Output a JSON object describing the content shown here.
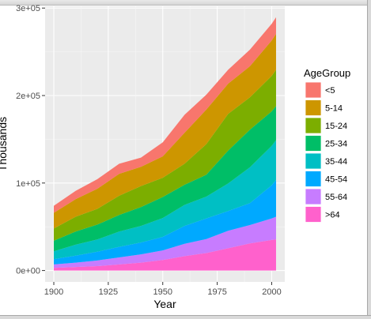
{
  "window": {
    "frame_color": "#d9d9d9"
  },
  "chart_data": {
    "type": "area",
    "stacked": true,
    "title": "",
    "xlabel": "Year",
    "ylabel": "Thousands",
    "x": [
      1900,
      1910,
      1920,
      1930,
      1940,
      1950,
      1960,
      1970,
      1980,
      1990,
      2000,
      2002
    ],
    "xlim": [
      1896,
      2006
    ],
    "ylim": [
      -13000,
      302000
    ],
    "x_ticks": [
      1900,
      1925,
      1950,
      1975,
      2000
    ],
    "x_tick_labels": [
      "1900",
      "1925",
      "1950",
      "1975",
      "2000"
    ],
    "y_ticks": [
      0,
      100000,
      200000,
      300000
    ],
    "y_tick_labels": [
      "0e+00",
      "1e+05",
      "2e+05",
      "3e+05"
    ],
    "grid": true,
    "panel_background": "#ebebeb",
    "legend": {
      "title": "AgeGroup",
      "position": "right"
    },
    "series": [
      {
        "name": ">64",
        "color": "#ff61cc",
        "values": [
          3000,
          4000,
          5000,
          7000,
          9000,
          12000,
          16500,
          20000,
          25500,
          31000,
          35000,
          35500
        ]
      },
      {
        "name": "55-64",
        "color": "#c77cff",
        "values": [
          4000,
          5000,
          6500,
          8000,
          9500,
          11000,
          14000,
          16000,
          20000,
          21000,
          24500,
          26000
        ]
      },
      {
        "name": "45-54",
        "color": "#00a9ff",
        "values": [
          6000,
          8000,
          10000,
          12000,
          13500,
          15500,
          20500,
          23500,
          22500,
          25000,
          38000,
          42000
        ]
      },
      {
        "name": "35-44",
        "color": "#00bfc4",
        "values": [
          9000,
          12500,
          14000,
          17500,
          19000,
          21500,
          24000,
          25000,
          31500,
          41000,
          45000,
          45500
        ]
      },
      {
        "name": "25-34",
        "color": "#00be67",
        "values": [
          12000,
          15000,
          17000,
          19000,
          21500,
          24000,
          23000,
          25000,
          37500,
          43000,
          39500,
          39000
        ]
      },
      {
        "name": "15-24",
        "color": "#7cae00",
        "values": [
          14000,
          17000,
          18000,
          22000,
          24000,
          22000,
          24000,
          35000,
          42000,
          37000,
          40500,
          41500
        ]
      },
      {
        "name": "5-14",
        "color": "#cd9600",
        "values": [
          18000,
          20000,
          23000,
          25000,
          22000,
          24500,
          35500,
          39500,
          34500,
          35500,
          40500,
          41000
        ]
      },
      {
        "name": "<5",
        "color": "#f8766d",
        "values": [
          8000,
          9500,
          11000,
          11500,
          10500,
          16000,
          20500,
          17000,
          16000,
          19000,
          19000,
          19000
        ]
      }
    ]
  }
}
